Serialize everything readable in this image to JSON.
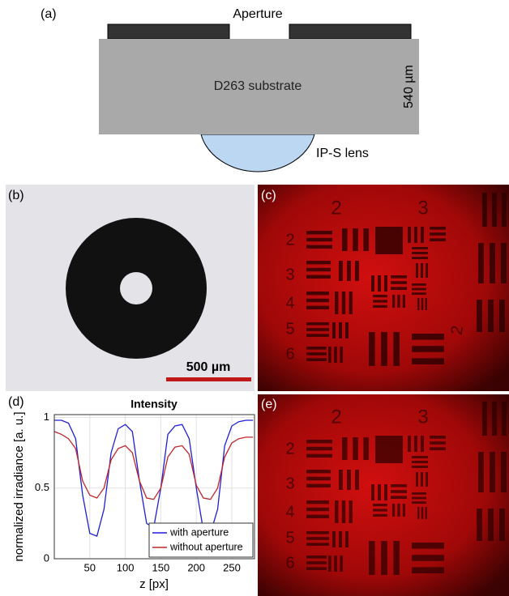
{
  "panels": {
    "a": {
      "label": "(a)",
      "aperture": "Aperture",
      "substrate": "D263 substrate",
      "thickness": "540 µm",
      "lens": "IP-S lens"
    },
    "b": {
      "label": "(b)",
      "scale_bar": "500 µm"
    },
    "c": {
      "label": "(c)",
      "target_numbers": [
        "2",
        "3",
        "2",
        "3",
        "4",
        "5",
        "6",
        "2"
      ]
    },
    "e": {
      "label": "(e)",
      "target_numbers": [
        "2",
        "3",
        "2",
        "3",
        "4",
        "5",
        "6"
      ]
    }
  },
  "chart_data": {
    "type": "line",
    "panel_label": "(d)",
    "title": "Intensity",
    "x_label": "z [px]",
    "y_label": "normalized irradiance [a. u.]",
    "x": [
      0,
      10,
      20,
      30,
      40,
      50,
      60,
      70,
      80,
      90,
      100,
      110,
      120,
      130,
      140,
      150,
      160,
      170,
      180,
      190,
      200,
      210,
      220,
      230,
      240,
      250,
      260,
      270,
      280
    ],
    "series": [
      {
        "name": "with aperture",
        "color": "#1f1fd8",
        "values": [
          0.98,
          0.98,
          0.96,
          0.85,
          0.45,
          0.18,
          0.16,
          0.35,
          0.75,
          0.92,
          0.95,
          0.9,
          0.55,
          0.25,
          0.22,
          0.5,
          0.88,
          0.94,
          0.95,
          0.85,
          0.5,
          0.2,
          0.18,
          0.35,
          0.8,
          0.94,
          0.97,
          0.98,
          0.98
        ]
      },
      {
        "name": "without aperture",
        "color": "#c0262b",
        "values": [
          0.9,
          0.88,
          0.85,
          0.78,
          0.55,
          0.45,
          0.43,
          0.5,
          0.7,
          0.78,
          0.8,
          0.75,
          0.55,
          0.43,
          0.42,
          0.5,
          0.72,
          0.79,
          0.8,
          0.74,
          0.52,
          0.43,
          0.42,
          0.5,
          0.72,
          0.82,
          0.85,
          0.86,
          0.86
        ]
      }
    ],
    "xlim": [
      0,
      282
    ],
    "ylim": [
      0,
      1.02
    ],
    "xticks": [
      50,
      100,
      150,
      200,
      250
    ],
    "yticks": [
      0,
      0.5,
      1
    ],
    "grid": true,
    "legend": "lower right"
  }
}
